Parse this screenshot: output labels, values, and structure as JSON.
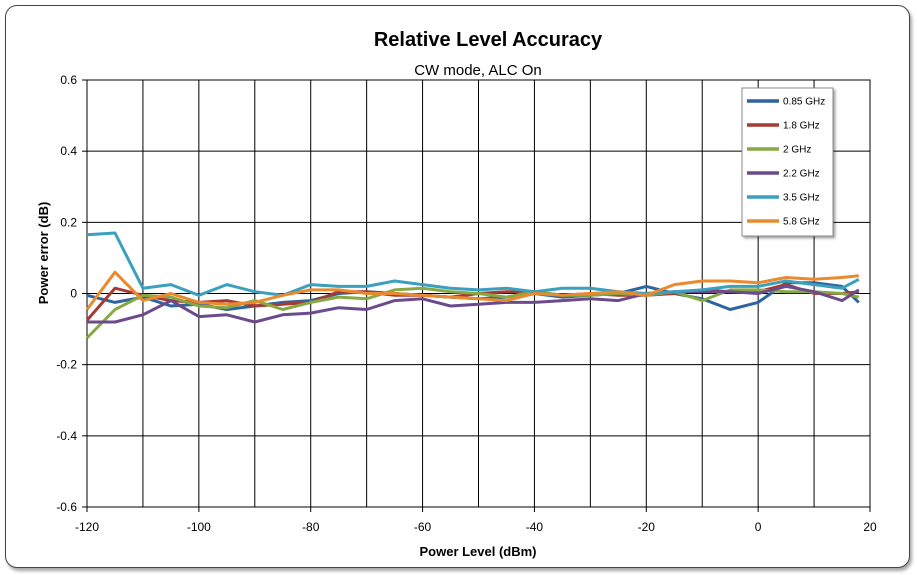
{
  "chart_data": {
    "type": "line",
    "title": "Relative Level Accuracy",
    "subtitle": "CW mode, ALC On",
    "xlabel": "Power Level (dBm)",
    "ylabel": "Power error (dB)",
    "xlim": [
      -120,
      20
    ],
    "ylim": [
      -0.6,
      0.6
    ],
    "xticks": [
      -120,
      -100,
      -80,
      -60,
      -40,
      -20,
      0,
      20
    ],
    "yticks": [
      0.6,
      0.4,
      0.2,
      0,
      -0.2,
      -0.4,
      -0.6
    ],
    "xtick_labels": [
      "-120",
      "-100",
      "-80",
      "-60",
      "-40",
      "-20",
      "0",
      "20"
    ],
    "ytick_labels": [
      "0.6",
      "0.4",
      "0.2",
      "0",
      "-0.2",
      "-0.4",
      "-0.6"
    ],
    "grid": true,
    "legend_position": "top-right",
    "x": [
      -120,
      -115,
      -110,
      -105,
      -100,
      -95,
      -90,
      -85,
      -80,
      -75,
      -70,
      -65,
      -60,
      -55,
      -50,
      -45,
      -40,
      -35,
      -30,
      -25,
      -20,
      -15,
      -10,
      -5,
      0,
      5,
      10,
      15,
      18
    ],
    "series": [
      {
        "name": "0.85 GHz",
        "color": "#2e64a0",
        "values": [
          -0.005,
          -0.025,
          -0.01,
          -0.035,
          -0.03,
          -0.045,
          -0.035,
          -0.025,
          -0.02,
          0.0,
          0.005,
          0.0,
          -0.005,
          -0.01,
          -0.015,
          -0.01,
          0.0,
          -0.01,
          -0.005,
          0.0,
          0.02,
          0.0,
          -0.015,
          -0.045,
          -0.025,
          0.03,
          0.03,
          0.02,
          -0.025
        ]
      },
      {
        "name": "1.8 GHz",
        "color": "#a83a36",
        "values": [
          -0.075,
          0.015,
          -0.005,
          -0.02,
          -0.025,
          -0.02,
          -0.035,
          -0.03,
          -0.025,
          0.005,
          0.005,
          -0.005,
          -0.005,
          -0.01,
          0.0,
          0.005,
          0.005,
          -0.005,
          0.0,
          -0.005,
          -0.005,
          0.0,
          0.01,
          0.005,
          0.005,
          0.025,
          0.0,
          0.0,
          0.005
        ]
      },
      {
        "name": "2 GHz",
        "color": "#86a943",
        "values": [
          -0.125,
          -0.045,
          -0.005,
          -0.01,
          -0.035,
          -0.04,
          -0.02,
          -0.045,
          -0.025,
          -0.01,
          -0.015,
          0.01,
          0.015,
          0.005,
          0.0,
          -0.01,
          0.005,
          -0.005,
          -0.005,
          0.0,
          -0.005,
          0.005,
          -0.02,
          0.01,
          0.01,
          0.005,
          0.005,
          0.0,
          -0.01
        ]
      },
      {
        "name": "2.2 GHz",
        "color": "#6c4b8c",
        "values": [
          -0.08,
          -0.08,
          -0.06,
          -0.02,
          -0.065,
          -0.06,
          -0.08,
          -0.06,
          -0.055,
          -0.04,
          -0.045,
          -0.02,
          -0.015,
          -0.035,
          -0.03,
          -0.025,
          -0.025,
          -0.02,
          -0.015,
          -0.02,
          0.0,
          0.005,
          0.005,
          0.005,
          0.0,
          0.02,
          0.005,
          -0.02,
          0.01
        ]
      },
      {
        "name": "3.5 GHz",
        "color": "#3b9fbe",
        "values": [
          0.165,
          0.17,
          0.015,
          0.025,
          -0.005,
          0.025,
          0.005,
          -0.005,
          0.025,
          0.02,
          0.02,
          0.035,
          0.025,
          0.015,
          0.01,
          0.015,
          0.005,
          0.015,
          0.015,
          0.005,
          0.0,
          0.005,
          0.01,
          0.02,
          0.02,
          0.035,
          0.025,
          0.015,
          0.04
        ]
      },
      {
        "name": "5.8 GHz",
        "color": "#e98a2f",
        "values": [
          -0.045,
          0.06,
          -0.02,
          0.0,
          -0.025,
          -0.03,
          -0.025,
          -0.005,
          0.01,
          0.01,
          0.0,
          0.0,
          -0.005,
          -0.01,
          -0.015,
          -0.02,
          0.0,
          -0.005,
          0.0,
          0.005,
          -0.005,
          0.025,
          0.035,
          0.035,
          0.03,
          0.045,
          0.04,
          0.045,
          0.05
        ]
      }
    ]
  }
}
